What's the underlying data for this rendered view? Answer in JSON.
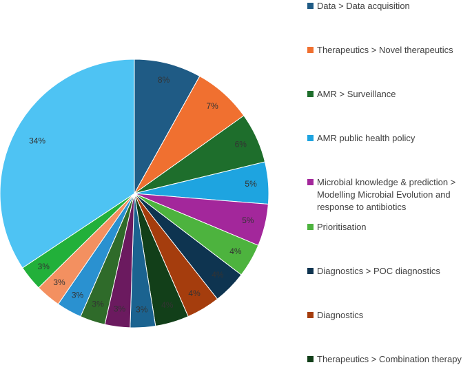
{
  "chart_data": {
    "type": "pie",
    "start_angle_deg": 0,
    "direction": "clockwise",
    "label_suffix": "%",
    "slices": [
      {
        "label": "Data > Data acquisition",
        "value": 8,
        "color": "#1f5b85",
        "legend": true
      },
      {
        "label": "Therapeutics > Novel therapeutics",
        "value": 7,
        "color": "#f07030",
        "legend": true
      },
      {
        "label": "AMR > Surveillance",
        "value": 6,
        "color": "#1e6e2c",
        "legend": true
      },
      {
        "label": "AMR public health policy",
        "value": 5,
        "color": "#1ea4e0",
        "legend": true
      },
      {
        "label": "Microbial knowledge & prediction > Modelling Microbial Evolution and response to antibiotics",
        "value": 5,
        "color": "#a3279b",
        "legend": true
      },
      {
        "label": "Prioritisation",
        "value": 4,
        "color": "#4db33e",
        "legend": true
      },
      {
        "label": "Diagnostics > POC diagnostics",
        "value": 4,
        "color": "#0e3450",
        "legend": true
      },
      {
        "label": "Diagnostics",
        "value": 4,
        "color": "#a53d0d",
        "legend": true
      },
      {
        "label": "Therapeutics > Combination therapy",
        "value": 4,
        "color": "#123f19",
        "legend": true
      },
      {
        "label": "",
        "value": 3,
        "color": "#1b6390",
        "legend": false
      },
      {
        "label": "",
        "value": 3,
        "color": "#6b1a5f",
        "legend": false
      },
      {
        "label": "",
        "value": 3,
        "color": "#2f6b2a",
        "legend": false
      },
      {
        "label": "",
        "value": 3,
        "color": "#2a91d0",
        "legend": false
      },
      {
        "label": "",
        "value": 3,
        "color": "#f39060",
        "legend": false
      },
      {
        "label": "",
        "value": 3,
        "color": "#22b03a",
        "legend": false
      },
      {
        "label": "",
        "value": 34,
        "color": "#4ec3f3",
        "legend": false
      }
    ]
  }
}
